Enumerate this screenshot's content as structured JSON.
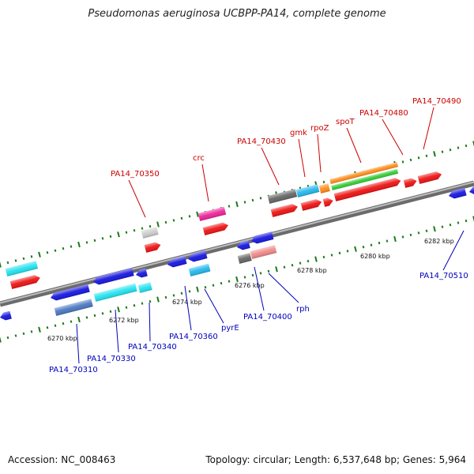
{
  "title": "Pseudomonas aeruginosa UCBPP-PA14, complete genome",
  "footer": {
    "accession": "Accession: NC_008463",
    "summary": "Topology: circular; Length: 6,537,648 bp; Genes: 5,964"
  },
  "colors": {
    "top_label": "#cc0000",
    "bottom_label": "#0000bb",
    "backbone": "#888888",
    "tick": "#1a7a1a"
  },
  "scale_labels": [
    {
      "kbp": 6270,
      "text": "6270 kbp"
    },
    {
      "kbp": 6272,
      "text": "6272 kbp"
    },
    {
      "kbp": 6274,
      "text": "6274 kbp"
    },
    {
      "kbp": 6276,
      "text": "6276 kbp"
    },
    {
      "kbp": 6278,
      "text": "6278 kbp"
    },
    {
      "kbp": 6280,
      "text": "6280 kbp"
    },
    {
      "kbp": 6282,
      "text": "6282 kbp"
    }
  ],
  "gene_labels_top": [
    "PA14_70350",
    "crc",
    "PA14_70430",
    "gmk",
    "rpoZ",
    "spoT",
    "PA14_70480",
    "PA14_70490"
  ],
  "gene_labels_bottom": [
    "PA14_70310",
    "PA14_70330",
    "PA14_70340",
    "PA14_70360",
    "pyrE",
    "PA14_70400",
    "rph",
    "PA14_70510"
  ]
}
